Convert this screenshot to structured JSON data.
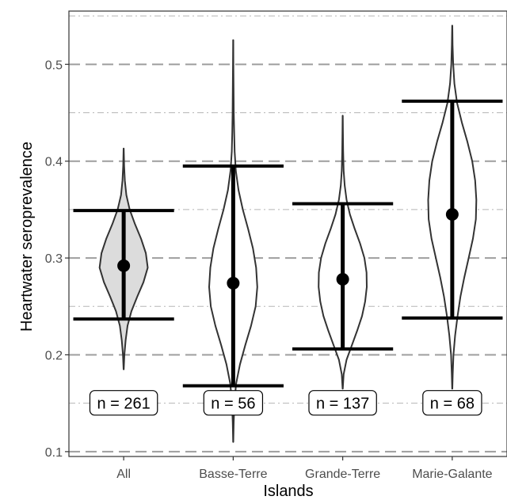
{
  "chart_data": {
    "type": "violin",
    "xlabel": "Islands",
    "ylabel": "Heartwater seroprevalence",
    "ylim": [
      0.095,
      0.555
    ],
    "y_ticks": [
      0.1,
      0.2,
      0.3,
      0.4,
      0.5
    ],
    "y_tick_labels": [
      "0.1",
      "0.2",
      "0.3",
      "0.4",
      "0.5"
    ],
    "grid": "major dashed, minor dot-dash",
    "categories": [
      "All",
      "Basse-Terre",
      "Grande-Terre",
      "Marie-Galante"
    ],
    "groups": [
      {
        "name": "All",
        "n_label": "n = 261",
        "fill": "#dcdcdc",
        "median": 0.292,
        "ci_low": 0.237,
        "ci_high": 0.349,
        "violin_min": 0.185,
        "violin_max": 0.413,
        "density_profile": [
          [
            0.185,
            0.004
          ],
          [
            0.2,
            0.03
          ],
          [
            0.215,
            0.08
          ],
          [
            0.23,
            0.16
          ],
          [
            0.245,
            0.32
          ],
          [
            0.26,
            0.56
          ],
          [
            0.275,
            0.82
          ],
          [
            0.29,
            1.0
          ],
          [
            0.305,
            0.92
          ],
          [
            0.32,
            0.72
          ],
          [
            0.335,
            0.47
          ],
          [
            0.35,
            0.25
          ],
          [
            0.365,
            0.11
          ],
          [
            0.38,
            0.05
          ],
          [
            0.395,
            0.02
          ],
          [
            0.413,
            0.004
          ]
        ]
      },
      {
        "name": "Basse-Terre",
        "n_label": "n = 56",
        "fill": "#ffffff",
        "median": 0.274,
        "ci_low": 0.168,
        "ci_high": 0.395,
        "violin_min": 0.11,
        "violin_max": 0.525,
        "density_profile": [
          [
            0.11,
            0.004
          ],
          [
            0.13,
            0.02
          ],
          [
            0.15,
            0.05
          ],
          [
            0.17,
            0.12
          ],
          [
            0.19,
            0.28
          ],
          [
            0.21,
            0.5
          ],
          [
            0.23,
            0.74
          ],
          [
            0.25,
            0.93
          ],
          [
            0.27,
            1.0
          ],
          [
            0.29,
            0.95
          ],
          [
            0.31,
            0.82
          ],
          [
            0.33,
            0.62
          ],
          [
            0.35,
            0.4
          ],
          [
            0.37,
            0.22
          ],
          [
            0.39,
            0.11
          ],
          [
            0.41,
            0.06
          ],
          [
            0.43,
            0.04
          ],
          [
            0.45,
            0.025
          ],
          [
            0.48,
            0.015
          ],
          [
            0.5,
            0.008
          ],
          [
            0.525,
            0.003
          ]
        ]
      },
      {
        "name": "Grande-Terre",
        "n_label": "n = 137",
        "fill": "#ffffff",
        "median": 0.278,
        "ci_low": 0.206,
        "ci_high": 0.356,
        "violin_min": 0.165,
        "violin_max": 0.447,
        "density_profile": [
          [
            0.165,
            0.004
          ],
          [
            0.18,
            0.04
          ],
          [
            0.195,
            0.16
          ],
          [
            0.21,
            0.38
          ],
          [
            0.225,
            0.6
          ],
          [
            0.24,
            0.8
          ],
          [
            0.255,
            0.93
          ],
          [
            0.27,
            1.0
          ],
          [
            0.285,
            0.99
          ],
          [
            0.3,
            0.9
          ],
          [
            0.315,
            0.72
          ],
          [
            0.33,
            0.5
          ],
          [
            0.345,
            0.3
          ],
          [
            0.36,
            0.16
          ],
          [
            0.375,
            0.08
          ],
          [
            0.39,
            0.04
          ],
          [
            0.41,
            0.02
          ],
          [
            0.43,
            0.01
          ],
          [
            0.447,
            0.004
          ]
        ]
      },
      {
        "name": "Marie-Galante",
        "n_label": "n = 68",
        "fill": "#ffffff",
        "median": 0.345,
        "ci_low": 0.238,
        "ci_high": 0.462,
        "violin_min": 0.165,
        "violin_max": 0.54,
        "density_profile": [
          [
            0.165,
            0.004
          ],
          [
            0.18,
            0.02
          ],
          [
            0.2,
            0.05
          ],
          [
            0.22,
            0.12
          ],
          [
            0.24,
            0.22
          ],
          [
            0.26,
            0.34
          ],
          [
            0.28,
            0.5
          ],
          [
            0.3,
            0.68
          ],
          [
            0.32,
            0.86
          ],
          [
            0.34,
            0.98
          ],
          [
            0.36,
            1.0
          ],
          [
            0.38,
            0.95
          ],
          [
            0.4,
            0.83
          ],
          [
            0.42,
            0.63
          ],
          [
            0.44,
            0.4
          ],
          [
            0.46,
            0.2
          ],
          [
            0.48,
            0.09
          ],
          [
            0.5,
            0.04
          ],
          [
            0.52,
            0.015
          ],
          [
            0.54,
            0.003
          ]
        ]
      }
    ]
  },
  "colors": {
    "panel_border": "#333333",
    "major_grid": "#9e9e9e",
    "minor_grid": "#b5b5b5",
    "violin_stroke": "#333333",
    "marks": "#000000"
  }
}
